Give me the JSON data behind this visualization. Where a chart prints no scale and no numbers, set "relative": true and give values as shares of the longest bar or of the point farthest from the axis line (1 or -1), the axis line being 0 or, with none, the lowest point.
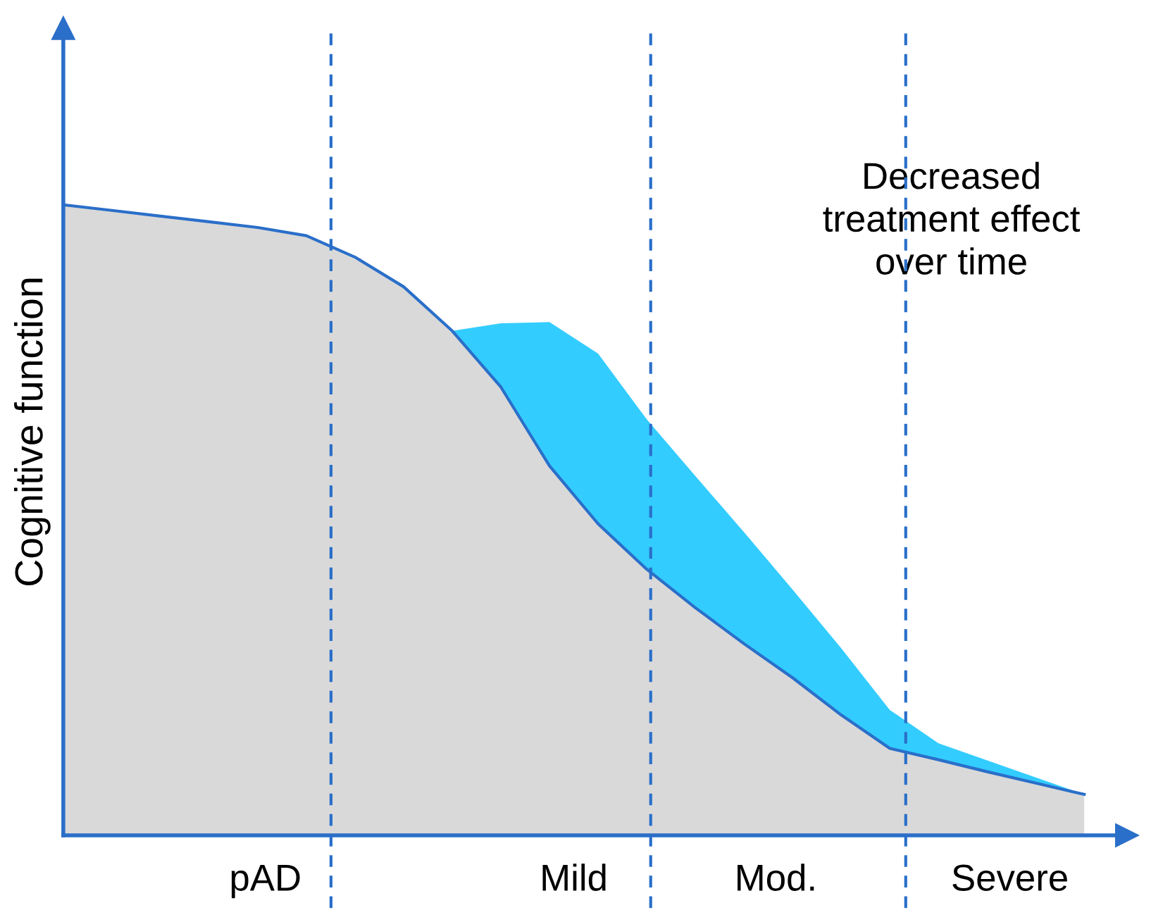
{
  "chart_data": {
    "type": "area",
    "relative": true,
    "stacked": true,
    "ylabel": "Cognitive function",
    "categories": [
      null,
      null,
      null,
      null,
      null,
      null,
      null,
      null,
      null,
      null,
      null,
      null,
      null,
      null,
      null,
      null,
      null,
      null,
      null,
      null,
      null,
      null
    ],
    "series": [
      {
        "color": "#d9d9d9",
        "values": [
          1.0,
          0.991,
          0.982,
          0.973,
          0.964,
          0.951,
          0.917,
          0.87,
          0.8,
          0.711,
          0.586,
          0.494,
          0.422,
          0.361,
          0.304,
          0.25,
          0.191,
          0.138,
          0.12,
          0.101,
          0.083,
          0.065
        ]
      },
      {
        "color": "#33ccff",
        "values": [
          null,
          null,
          null,
          null,
          null,
          null,
          null,
          null,
          0,
          0.101,
          0.228,
          0.27,
          0.238,
          0.209,
          0.177,
          0.14,
          0.106,
          0.061,
          0.026,
          0.018,
          0.009,
          0
        ]
      }
    ],
    "annotations": [
      "Decreased\ntreatment effect\nover time",
      "pAD",
      "Mild",
      "Mod.",
      "Severe"
    ]
  }
}
